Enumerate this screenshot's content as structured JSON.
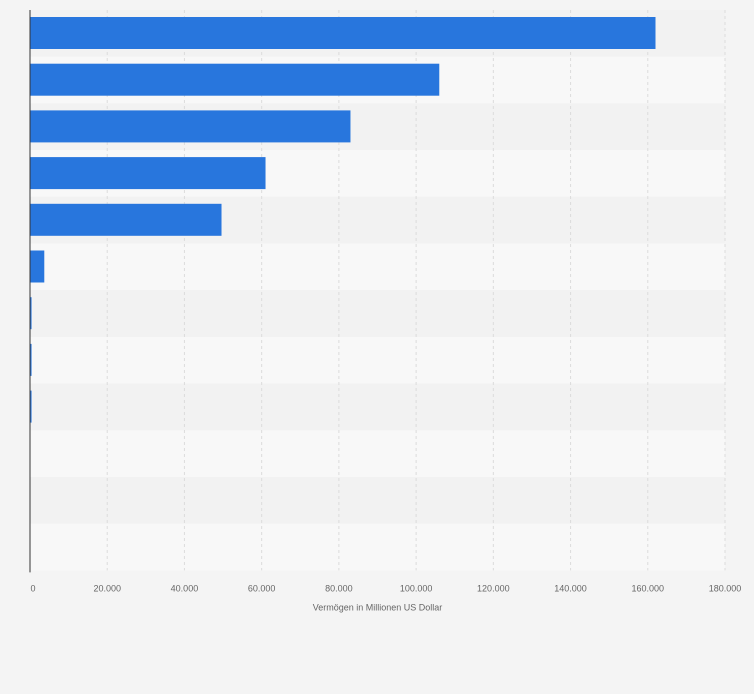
{
  "chart_data": {
    "type": "bar",
    "orientation": "horizontal",
    "categories": [
      "",
      "",
      "",
      "",
      "",
      "",
      "",
      "",
      "",
      "",
      "",
      ""
    ],
    "values": [
      162000,
      106000,
      83000,
      61000,
      49600,
      3700,
      400,
      400,
      400,
      0,
      0,
      0
    ],
    "xlabel": "Vermögen in Millionen US Dollar",
    "ylabel": "",
    "xlim": [
      0,
      180000
    ],
    "ticks": [
      0,
      20000,
      40000,
      60000,
      80000,
      100000,
      120000,
      140000,
      160000,
      180000
    ],
    "tick_labels": [
      "0",
      "20.000",
      "40.000",
      "60.000",
      "80.000",
      "100.000",
      "120.000",
      "140.000",
      "160.000",
      "180.000"
    ],
    "grid": true,
    "bar_color": "#2876dd",
    "stripe_colors": [
      "#f2f2f2",
      "#f8f8f8"
    ],
    "background": "#f4f4f4"
  }
}
